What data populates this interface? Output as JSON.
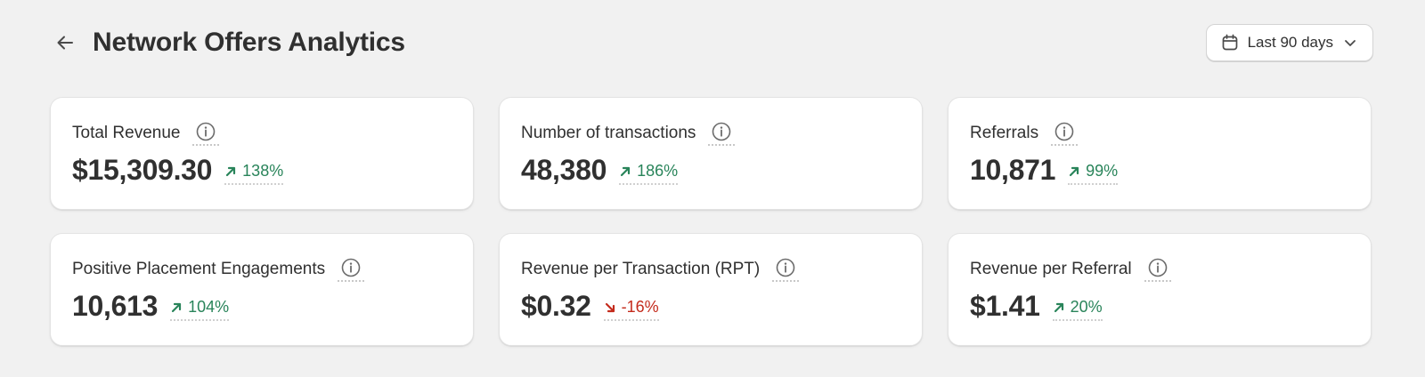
{
  "header": {
    "title": "Network Offers Analytics",
    "date_range_label": "Last 90 days"
  },
  "icons": {
    "back": "arrow-left-icon",
    "calendar": "calendar-icon",
    "chevron": "chevron-down-icon",
    "info": "info-icon",
    "trend_up": "arrow-up-right-icon",
    "trend_down": "arrow-down-right-icon"
  },
  "colors": {
    "positive": "#29845a",
    "negative": "#c42b1c"
  },
  "metrics": [
    {
      "label": "Total Revenue",
      "value": "$15,309.30",
      "delta": "138%",
      "trend": "up"
    },
    {
      "label": "Number of transactions",
      "value": "48,380",
      "delta": "186%",
      "trend": "up"
    },
    {
      "label": "Referrals",
      "value": "10,871",
      "delta": "99%",
      "trend": "up"
    },
    {
      "label": "Positive Placement Engagements",
      "value": "10,613",
      "delta": "104%",
      "trend": "up"
    },
    {
      "label": "Revenue per Transaction (RPT)",
      "value": "$0.32",
      "delta": "-16%",
      "trend": "down"
    },
    {
      "label": "Revenue per Referral",
      "value": "$1.41",
      "delta": "20%",
      "trend": "up"
    }
  ]
}
